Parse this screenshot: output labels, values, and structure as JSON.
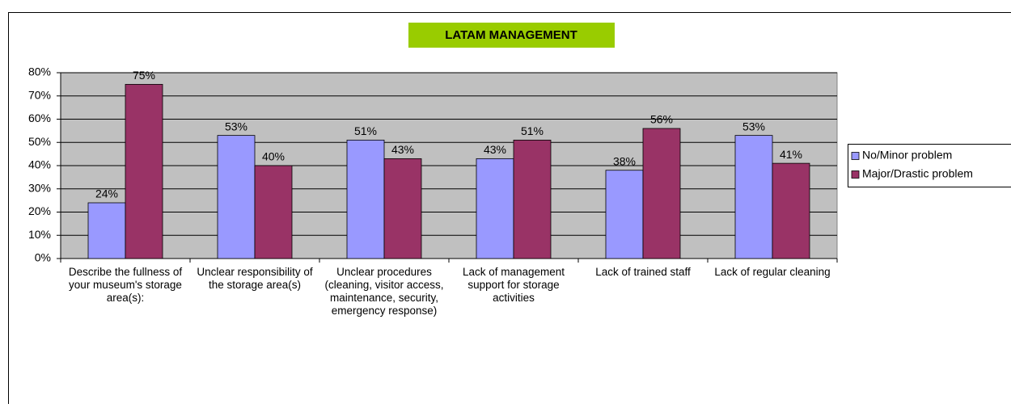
{
  "chart_data": {
    "type": "bar",
    "title": "LATAM MANAGEMENT",
    "categories": [
      "Describe the fullness of your museum's storage area(s):",
      "Unclear responsibility of the storage area(s)",
      "Unclear procedures (cleaning, visitor access, maintenance, security, emergency response)",
      "Lack of management support for storage activities",
      "Lack of trained staff",
      "Lack of regular cleaning"
    ],
    "series": [
      {
        "name": "No/Minor problem",
        "color": "#9999ff",
        "values": [
          24,
          53,
          51,
          43,
          38,
          53
        ],
        "value_labels": [
          "24%",
          "53%",
          "51%",
          "43%",
          "38%",
          "53%"
        ]
      },
      {
        "name": "Major/Drastic problem",
        "color": "#993366",
        "values": [
          75,
          40,
          43,
          51,
          56,
          41
        ],
        "value_labels": [
          "75%",
          "40%",
          "43%",
          "51%",
          "56%",
          "41%"
        ]
      }
    ],
    "ylim": [
      0,
      80
    ],
    "yticks": [
      {
        "value": 0,
        "label": "0%"
      },
      {
        "value": 10,
        "label": "10%"
      },
      {
        "value": 20,
        "label": "20%"
      },
      {
        "value": 30,
        "label": "30%"
      },
      {
        "value": 40,
        "label": "40%"
      },
      {
        "value": 50,
        "label": "50%"
      },
      {
        "value": 60,
        "label": "60%"
      },
      {
        "value": 70,
        "label": "70%"
      },
      {
        "value": 80,
        "label": "80%"
      }
    ],
    "grid": true,
    "legend": "right"
  }
}
